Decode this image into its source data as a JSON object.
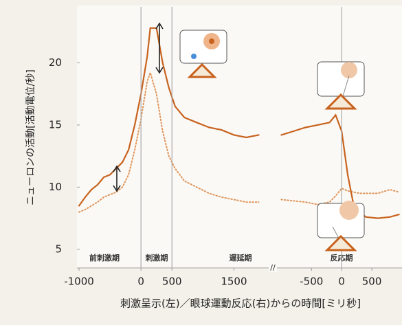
{
  "chart_data": [
    {
      "type": "line",
      "ylabel": "ニューロンの活動[活動電位/秒]",
      "xlabel": "刺激呈示(左)／眼球運動反応(右)からの時間[ミリ秒]",
      "ylim": [
        3.5,
        24.5
      ],
      "yticks": [
        5,
        10,
        15,
        20
      ],
      "xlim": [
        -1000,
        2050
      ],
      "xticks": [
        -1000,
        0,
        500,
        1500
      ],
      "period_labels": [
        "前刺激期",
        "刺激期",
        "遅延期"
      ],
      "x": [
        -1000,
        -900,
        -800,
        -700,
        -600,
        -500,
        -400,
        -300,
        -200,
        -100,
        0,
        100,
        150,
        250,
        350,
        450,
        550,
        700,
        900,
        1100,
        1300,
        1500,
        1700,
        1900
      ],
      "series": [
        {
          "color": "#c8621e",
          "style": "solid",
          "values": [
            8.5,
            9.2,
            9.8,
            10.2,
            10.8,
            11.0,
            11.5,
            12.0,
            13.0,
            15.0,
            17.5,
            20.5,
            22.8,
            22.8,
            20.0,
            18.0,
            16.5,
            15.6,
            15.2,
            14.8,
            14.6,
            14.2,
            14.0,
            14.2
          ]
        },
        {
          "color": "#e0945a",
          "style": "dotted",
          "values": [
            8.0,
            8.2,
            8.5,
            8.8,
            9.2,
            9.4,
            9.6,
            10.0,
            11.0,
            13.0,
            15.5,
            18.5,
            19.2,
            17.5,
            14.5,
            12.5,
            11.5,
            10.5,
            10.0,
            9.5,
            9.2,
            9.0,
            8.8,
            8.8
          ]
        }
      ]
    },
    {
      "type": "line",
      "xlim": [
        -1050,
        1000
      ],
      "xticks": [
        -500,
        0,
        500
      ],
      "period_labels": [
        "反応期"
      ],
      "x": [
        -1000,
        -800,
        -600,
        -400,
        -200,
        -100,
        0,
        100,
        200,
        300,
        400,
        600,
        800,
        950
      ],
      "series": [
        {
          "color": "#c8621e",
          "style": "solid",
          "values": [
            14.2,
            14.5,
            14.8,
            15.0,
            15.2,
            15.8,
            14.5,
            11.0,
            8.5,
            8.0,
            7.6,
            7.5,
            7.6,
            7.8
          ]
        },
        {
          "color": "#e0945a",
          "style": "dotted",
          "values": [
            9.0,
            8.9,
            8.8,
            8.6,
            8.8,
            9.3,
            9.9,
            9.7,
            9.6,
            9.5,
            9.5,
            9.5,
            9.8,
            9.6
          ]
        }
      ]
    }
  ]
}
